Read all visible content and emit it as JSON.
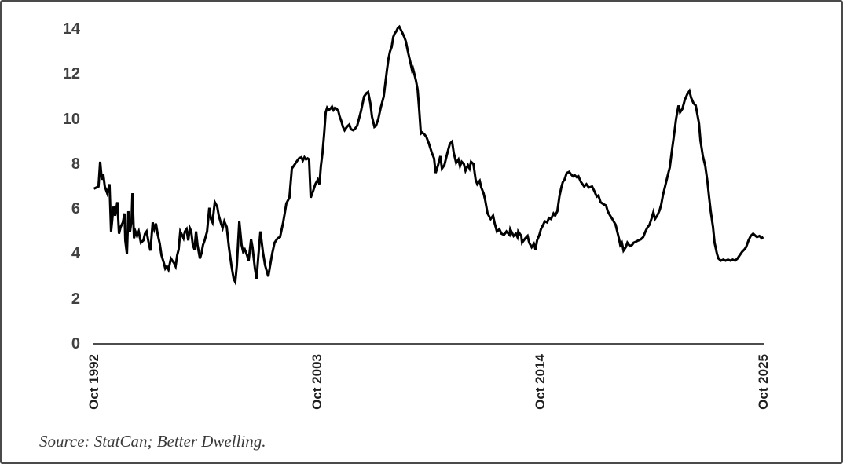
{
  "figure": {
    "background": "#ffffff",
    "border_color": "#4a4a4a",
    "source_note": "Source: StatCan; Better Dwelling."
  },
  "chart_data": {
    "type": "line",
    "title": "",
    "legend": "none",
    "grid": false,
    "series_color": "#010101",
    "series_stroke_width": 3,
    "x_axis": {
      "tick_labels": [
        "Oct 1992",
        "Oct 2003",
        "Oct 2014",
        "Oct 2025"
      ],
      "tick_years": [
        1992.75,
        2003.75,
        2014.75,
        2025.75
      ],
      "range": [
        1992.75,
        2025.75
      ]
    },
    "y_axis": {
      "tick_labels": [
        "0",
        "2",
        "4",
        "6",
        "8",
        "10",
        "12",
        "14"
      ],
      "tick_values": [
        0,
        2,
        4,
        6,
        8,
        10,
        12,
        14
      ],
      "range": [
        0,
        14
      ]
    },
    "points": [
      [
        1992.75,
        6.9
      ],
      [
        1992.87,
        6.95
      ],
      [
        1992.98,
        7.0
      ],
      [
        1993.06,
        8.1
      ],
      [
        1993.14,
        7.3
      ],
      [
        1993.21,
        7.55
      ],
      [
        1993.29,
        7.0
      ],
      [
        1993.41,
        6.7
      ],
      [
        1993.52,
        7.1
      ],
      [
        1993.6,
        5.0
      ],
      [
        1993.72,
        6.1
      ],
      [
        1993.8,
        5.7
      ],
      [
        1993.91,
        6.3
      ],
      [
        1993.99,
        4.9
      ],
      [
        1994.07,
        5.2
      ],
      [
        1994.18,
        5.4
      ],
      [
        1994.26,
        5.8
      ],
      [
        1994.3,
        4.6
      ],
      [
        1994.38,
        4.0
      ],
      [
        1994.45,
        5.9
      ],
      [
        1994.53,
        5.0
      ],
      [
        1994.61,
        5.5
      ],
      [
        1994.65,
        6.7
      ],
      [
        1994.73,
        4.7
      ],
      [
        1994.8,
        5.0
      ],
      [
        1994.88,
        4.8
      ],
      [
        1994.96,
        5.0
      ],
      [
        1995.07,
        4.5
      ],
      [
        1995.19,
        4.6
      ],
      [
        1995.27,
        4.9
      ],
      [
        1995.35,
        5.0
      ],
      [
        1995.46,
        4.45
      ],
      [
        1995.54,
        4.15
      ],
      [
        1995.65,
        5.4
      ],
      [
        1995.73,
        5.1
      ],
      [
        1995.81,
        5.35
      ],
      [
        1995.89,
        4.9
      ],
      [
        1996.0,
        4.45
      ],
      [
        1996.08,
        3.95
      ],
      [
        1996.2,
        3.6
      ],
      [
        1996.27,
        3.35
      ],
      [
        1996.35,
        3.45
      ],
      [
        1996.43,
        3.3
      ],
      [
        1996.55,
        3.8
      ],
      [
        1996.62,
        3.7
      ],
      [
        1996.7,
        3.6
      ],
      [
        1996.78,
        3.45
      ],
      [
        1996.86,
        3.95
      ],
      [
        1996.93,
        4.2
      ],
      [
        1997.01,
        5.0
      ],
      [
        1997.09,
        4.85
      ],
      [
        1997.17,
        4.7
      ],
      [
        1997.24,
        5.0
      ],
      [
        1997.32,
        5.1
      ],
      [
        1997.4,
        4.6
      ],
      [
        1997.48,
        5.15
      ],
      [
        1997.55,
        5.0
      ],
      [
        1997.63,
        4.4
      ],
      [
        1997.71,
        4.2
      ],
      [
        1997.79,
        5.0
      ],
      [
        1997.86,
        4.4
      ],
      [
        1997.98,
        3.8
      ],
      [
        1998.06,
        4.05
      ],
      [
        1998.13,
        4.4
      ],
      [
        1998.21,
        4.6
      ],
      [
        1998.33,
        5.0
      ],
      [
        1998.44,
        6.05
      ],
      [
        1998.52,
        5.55
      ],
      [
        1998.6,
        5.4
      ],
      [
        1998.71,
        6.3
      ],
      [
        1998.83,
        6.1
      ],
      [
        1998.91,
        5.7
      ],
      [
        1999.02,
        5.35
      ],
      [
        1999.1,
        5.15
      ],
      [
        1999.18,
        5.45
      ],
      [
        1999.3,
        5.2
      ],
      [
        1999.41,
        4.3
      ],
      [
        1999.53,
        3.5
      ],
      [
        1999.64,
        2.9
      ],
      [
        1999.72,
        2.75
      ],
      [
        1999.8,
        3.5
      ],
      [
        1999.92,
        5.45
      ],
      [
        2000.03,
        4.4
      ],
      [
        2000.11,
        4.1
      ],
      [
        2000.19,
        4.2
      ],
      [
        2000.3,
        3.95
      ],
      [
        2000.38,
        3.7
      ],
      [
        2000.5,
        4.65
      ],
      [
        2000.57,
        4.3
      ],
      [
        2000.69,
        3.35
      ],
      [
        2000.77,
        2.9
      ],
      [
        2000.85,
        3.8
      ],
      [
        2000.96,
        5.0
      ],
      [
        2001.08,
        4.1
      ],
      [
        2001.19,
        3.5
      ],
      [
        2001.35,
        3.0
      ],
      [
        2001.46,
        3.6
      ],
      [
        2001.54,
        4.0
      ],
      [
        2001.66,
        4.5
      ],
      [
        2001.81,
        4.7
      ],
      [
        2001.93,
        4.75
      ],
      [
        2002.01,
        5.1
      ],
      [
        2002.08,
        5.4
      ],
      [
        2002.16,
        5.8
      ],
      [
        2002.24,
        6.25
      ],
      [
        2002.39,
        6.5
      ],
      [
        2002.51,
        7.8
      ],
      [
        2002.63,
        7.95
      ],
      [
        2002.74,
        8.1
      ],
      [
        2002.86,
        8.25
      ],
      [
        2002.98,
        8.3
      ],
      [
        2003.05,
        8.15
      ],
      [
        2003.13,
        8.3
      ],
      [
        2003.21,
        8.2
      ],
      [
        2003.29,
        8.25
      ],
      [
        2003.36,
        8.2
      ],
      [
        2003.44,
        6.5
      ],
      [
        2003.56,
        6.8
      ],
      [
        2003.67,
        7.1
      ],
      [
        2003.79,
        7.3
      ],
      [
        2003.87,
        7.1
      ],
      [
        2003.94,
        7.9
      ],
      [
        2004.02,
        8.5
      ],
      [
        2004.1,
        9.3
      ],
      [
        2004.18,
        10.3
      ],
      [
        2004.25,
        10.5
      ],
      [
        2004.33,
        10.4
      ],
      [
        2004.41,
        10.45
      ],
      [
        2004.49,
        10.55
      ],
      [
        2004.56,
        10.4
      ],
      [
        2004.64,
        10.5
      ],
      [
        2004.72,
        10.45
      ],
      [
        2004.8,
        10.35
      ],
      [
        2004.87,
        10.1
      ],
      [
        2004.95,
        9.9
      ],
      [
        2005.03,
        9.65
      ],
      [
        2005.11,
        9.5
      ],
      [
        2005.22,
        9.65
      ],
      [
        2005.34,
        9.75
      ],
      [
        2005.42,
        9.55
      ],
      [
        2005.53,
        9.5
      ],
      [
        2005.61,
        9.55
      ],
      [
        2005.73,
        9.7
      ],
      [
        2005.92,
        10.35
      ],
      [
        2006.07,
        11.0
      ],
      [
        2006.19,
        11.15
      ],
      [
        2006.27,
        11.2
      ],
      [
        2006.38,
        10.7
      ],
      [
        2006.46,
        10.1
      ],
      [
        2006.58,
        9.65
      ],
      [
        2006.66,
        9.7
      ],
      [
        2006.77,
        10.0
      ],
      [
        2006.89,
        10.5
      ],
      [
        2007.04,
        11.0
      ],
      [
        2007.12,
        11.6
      ],
      [
        2007.2,
        12.2
      ],
      [
        2007.28,
        12.7
      ],
      [
        2007.35,
        13.0
      ],
      [
        2007.43,
        13.2
      ],
      [
        2007.51,
        13.65
      ],
      [
        2007.58,
        13.8
      ],
      [
        2007.66,
        13.9
      ],
      [
        2007.74,
        14.05
      ],
      [
        2007.81,
        14.1
      ],
      [
        2007.89,
        13.95
      ],
      [
        2007.97,
        13.8
      ],
      [
        2008.05,
        13.65
      ],
      [
        2008.13,
        13.45
      ],
      [
        2008.21,
        13.1
      ],
      [
        2008.28,
        12.8
      ],
      [
        2008.36,
        12.5
      ],
      [
        2008.44,
        12.15
      ],
      [
        2008.48,
        12.25
      ],
      [
        2008.55,
        12.0
      ],
      [
        2008.63,
        11.7
      ],
      [
        2008.71,
        11.3
      ],
      [
        2008.79,
        10.4
      ],
      [
        2008.87,
        9.35
      ],
      [
        2008.94,
        9.4
      ],
      [
        2009.06,
        9.3
      ],
      [
        2009.14,
        9.2
      ],
      [
        2009.25,
        8.95
      ],
      [
        2009.41,
        8.5
      ],
      [
        2009.52,
        8.25
      ],
      [
        2009.6,
        7.6
      ],
      [
        2009.72,
        7.95
      ],
      [
        2009.83,
        8.35
      ],
      [
        2009.91,
        7.8
      ],
      [
        2010.03,
        7.95
      ],
      [
        2010.18,
        8.5
      ],
      [
        2010.3,
        8.9
      ],
      [
        2010.41,
        9.0
      ],
      [
        2010.49,
        8.5
      ],
      [
        2010.61,
        8.05
      ],
      [
        2010.72,
        8.2
      ],
      [
        2010.8,
        7.9
      ],
      [
        2010.88,
        8.1
      ],
      [
        2010.99,
        8.0
      ],
      [
        2011.07,
        7.7
      ],
      [
        2011.19,
        7.95
      ],
      [
        2011.27,
        7.8
      ],
      [
        2011.34,
        8.1
      ],
      [
        2011.46,
        8.0
      ],
      [
        2011.57,
        7.3
      ],
      [
        2011.65,
        7.1
      ],
      [
        2011.77,
        7.25
      ],
      [
        2011.85,
        6.95
      ],
      [
        2011.96,
        6.7
      ],
      [
        2012.04,
        6.4
      ],
      [
        2012.16,
        5.8
      ],
      [
        2012.31,
        5.55
      ],
      [
        2012.43,
        5.7
      ],
      [
        2012.51,
        5.35
      ],
      [
        2012.62,
        5.0
      ],
      [
        2012.74,
        5.1
      ],
      [
        2012.85,
        4.9
      ],
      [
        2012.97,
        4.85
      ],
      [
        2013.09,
        5.0
      ],
      [
        2013.24,
        4.85
      ],
      [
        2013.28,
        5.1
      ],
      [
        2013.44,
        4.8
      ],
      [
        2013.55,
        4.9
      ],
      [
        2013.63,
        4.75
      ],
      [
        2013.67,
        5.0
      ],
      [
        2013.82,
        4.8
      ],
      [
        2013.86,
        4.5
      ],
      [
        2014.02,
        4.7
      ],
      [
        2014.13,
        4.8
      ],
      [
        2014.21,
        4.5
      ],
      [
        2014.33,
        4.3
      ],
      [
        2014.44,
        4.45
      ],
      [
        2014.52,
        4.2
      ],
      [
        2014.6,
        4.6
      ],
      [
        2014.71,
        4.85
      ],
      [
        2014.79,
        5.1
      ],
      [
        2014.9,
        5.3
      ],
      [
        2014.98,
        5.45
      ],
      [
        2015.1,
        5.4
      ],
      [
        2015.18,
        5.6
      ],
      [
        2015.29,
        5.55
      ],
      [
        2015.41,
        5.8
      ],
      [
        2015.49,
        5.7
      ],
      [
        2015.6,
        5.9
      ],
      [
        2015.7,
        6.55
      ],
      [
        2015.79,
        6.95
      ],
      [
        2015.87,
        7.2
      ],
      [
        2015.95,
        7.3
      ],
      [
        2016.06,
        7.6
      ],
      [
        2016.18,
        7.65
      ],
      [
        2016.26,
        7.55
      ],
      [
        2016.37,
        7.45
      ],
      [
        2016.45,
        7.5
      ],
      [
        2016.57,
        7.4
      ],
      [
        2016.64,
        7.45
      ],
      [
        2016.76,
        7.2
      ],
      [
        2016.92,
        7.0
      ],
      [
        2017.03,
        7.1
      ],
      [
        2017.15,
        6.95
      ],
      [
        2017.31,
        7.0
      ],
      [
        2017.42,
        6.8
      ],
      [
        2017.54,
        6.55
      ],
      [
        2017.62,
        6.6
      ],
      [
        2017.73,
        6.3
      ],
      [
        2017.89,
        6.2
      ],
      [
        2018.0,
        6.15
      ],
      [
        2018.08,
        5.9
      ],
      [
        2018.2,
        5.7
      ],
      [
        2018.31,
        5.55
      ],
      [
        2018.47,
        5.3
      ],
      [
        2018.55,
        5.0
      ],
      [
        2018.63,
        4.7
      ],
      [
        2018.7,
        4.4
      ],
      [
        2018.78,
        4.5
      ],
      [
        2018.86,
        4.15
      ],
      [
        2018.97,
        4.3
      ],
      [
        2019.05,
        4.5
      ],
      [
        2019.17,
        4.35
      ],
      [
        2019.28,
        4.4
      ],
      [
        2019.36,
        4.5
      ],
      [
        2019.48,
        4.55
      ],
      [
        2019.59,
        4.6
      ],
      [
        2019.71,
        4.65
      ],
      [
        2019.83,
        4.75
      ],
      [
        2019.94,
        5.0
      ],
      [
        2020.02,
        5.15
      ],
      [
        2020.14,
        5.3
      ],
      [
        2020.25,
        5.6
      ],
      [
        2020.33,
        5.85
      ],
      [
        2020.41,
        5.55
      ],
      [
        2020.52,
        5.7
      ],
      [
        2020.64,
        5.95
      ],
      [
        2020.72,
        6.2
      ],
      [
        2020.8,
        6.6
      ],
      [
        2020.91,
        7.0
      ],
      [
        2021.03,
        7.45
      ],
      [
        2021.14,
        7.85
      ],
      [
        2021.26,
        8.7
      ],
      [
        2021.38,
        9.5
      ],
      [
        2021.45,
        10.0
      ],
      [
        2021.57,
        10.6
      ],
      [
        2021.65,
        10.3
      ],
      [
        2021.76,
        10.45
      ],
      [
        2021.88,
        10.85
      ],
      [
        2022.0,
        11.1
      ],
      [
        2022.11,
        11.25
      ],
      [
        2022.19,
        10.95
      ],
      [
        2022.31,
        10.7
      ],
      [
        2022.42,
        10.6
      ],
      [
        2022.5,
        10.2
      ],
      [
        2022.58,
        9.8
      ],
      [
        2022.65,
        9.05
      ],
      [
        2022.77,
        8.35
      ],
      [
        2022.89,
        7.9
      ],
      [
        2023.0,
        7.2
      ],
      [
        2023.08,
        6.5
      ],
      [
        2023.16,
        5.9
      ],
      [
        2023.27,
        5.2
      ],
      [
        2023.35,
        4.5
      ],
      [
        2023.47,
        4.0
      ],
      [
        2023.54,
        3.8
      ],
      [
        2023.66,
        3.7
      ],
      [
        2023.78,
        3.75
      ],
      [
        2023.89,
        3.7
      ],
      [
        2024.01,
        3.75
      ],
      [
        2024.13,
        3.7
      ],
      [
        2024.24,
        3.75
      ],
      [
        2024.36,
        3.7
      ],
      [
        2024.48,
        3.8
      ],
      [
        2024.59,
        3.95
      ],
      [
        2024.71,
        4.1
      ],
      [
        2024.82,
        4.2
      ],
      [
        2024.9,
        4.3
      ],
      [
        2025.02,
        4.6
      ],
      [
        2025.13,
        4.8
      ],
      [
        2025.25,
        4.9
      ],
      [
        2025.37,
        4.8
      ],
      [
        2025.44,
        4.75
      ],
      [
        2025.56,
        4.8
      ],
      [
        2025.67,
        4.7
      ],
      [
        2025.75,
        4.75
      ]
    ]
  }
}
